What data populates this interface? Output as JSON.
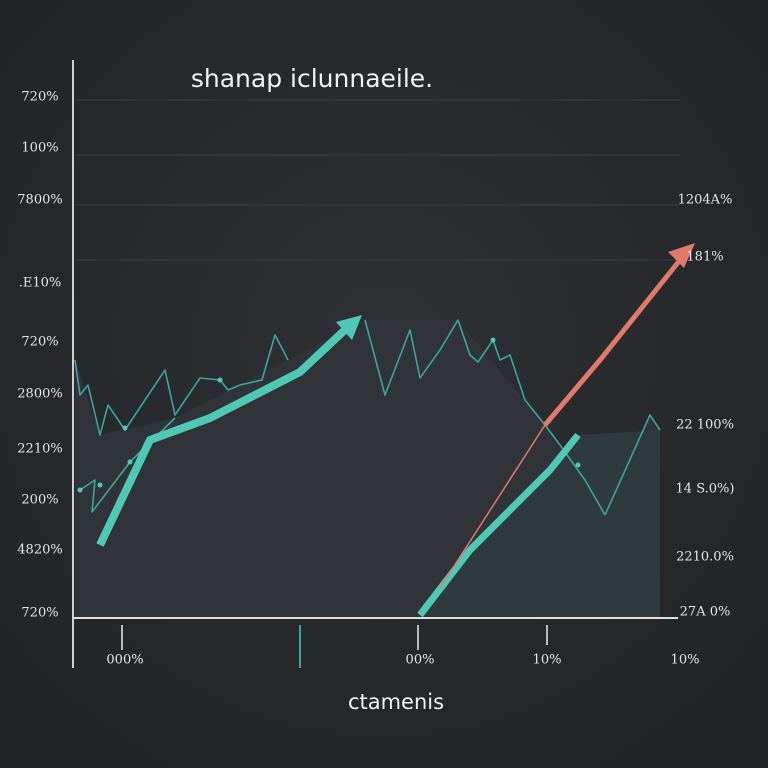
{
  "title": "shanap iclunnaeile.",
  "y_labels_left": [
    "720%",
    "100%",
    "7800%",
    ".E10%",
    "720%",
    "2800%",
    "2210%",
    "200%",
    "4820%",
    "720%"
  ],
  "y_labels_right": [
    "1204A%",
    "181%",
    "22 100%",
    "14 S.0%)",
    "2210.0%",
    "27A 0%"
  ],
  "x_labels": [
    "000%",
    "00%",
    "10%",
    "10%"
  ],
  "x_title": "ctamenis"
}
